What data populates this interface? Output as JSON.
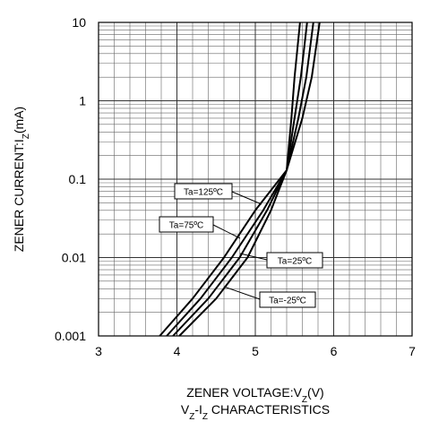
{
  "chart_data": {
    "type": "line",
    "title": [
      "V",
      "Z",
      "-I",
      "Z",
      " CHARACTERISTICS"
    ],
    "x_label": [
      "ZENER VOLTAGE:V",
      "Z",
      "(V)"
    ],
    "y_label": [
      "ZENER CURRENT:I",
      "Z",
      "(mA)"
    ],
    "xlim": [
      3,
      7
    ],
    "ylim": [
      0.001,
      10
    ],
    "log_y": true,
    "grid": true,
    "xticks": [
      3,
      4,
      5,
      6,
      7
    ],
    "yticks": [
      0.001,
      0.01,
      0.1,
      1,
      10
    ],
    "x_minor_ticks": [
      3.2,
      3.4,
      3.6,
      3.8,
      4.2,
      4.4,
      4.6,
      4.8,
      5.2,
      5.4,
      5.6,
      5.8,
      6.2,
      6.4,
      6.6,
      6.8
    ],
    "y_minor_ticks": [
      0.002,
      0.003,
      0.004,
      0.005,
      0.006,
      0.007,
      0.008,
      0.009,
      0.02,
      0.03,
      0.04,
      0.05,
      0.06,
      0.07,
      0.08,
      0.09,
      0.2,
      0.3,
      0.4,
      0.5,
      0.6,
      0.7,
      0.8,
      0.9,
      2,
      3,
      4,
      5,
      6,
      7,
      8,
      9
    ],
    "series": [
      {
        "name": "Ta=125ºC",
        "color": "#000000",
        "x": [
          3.78,
          4.2,
          4.6,
          5.0,
          5.4,
          5.6,
          5.72,
          5.82
        ],
        "values": [
          0.001,
          0.003,
          0.01,
          0.04,
          0.13,
          0.6,
          2,
          10
        ]
      },
      {
        "name": "Ta=75ºC",
        "color": "#000000",
        "x": [
          3.87,
          4.3,
          4.7,
          5.1,
          5.4,
          5.55,
          5.65,
          5.74
        ],
        "values": [
          0.001,
          0.003,
          0.01,
          0.04,
          0.13,
          0.6,
          2,
          10
        ]
      },
      {
        "name": "Ta=25ºC",
        "color": "#000000",
        "x": [
          3.95,
          4.4,
          4.8,
          5.15,
          5.4,
          5.5,
          5.58,
          5.66
        ],
        "values": [
          0.001,
          0.003,
          0.01,
          0.04,
          0.13,
          0.6,
          2,
          10
        ]
      },
      {
        "name": "Ta=-25ºC",
        "color": "#000000",
        "x": [
          4.03,
          4.5,
          4.9,
          5.2,
          5.4,
          5.46,
          5.5,
          5.57
        ],
        "values": [
          0.001,
          0.003,
          0.01,
          0.04,
          0.13,
          0.6,
          2,
          10
        ]
      }
    ]
  }
}
